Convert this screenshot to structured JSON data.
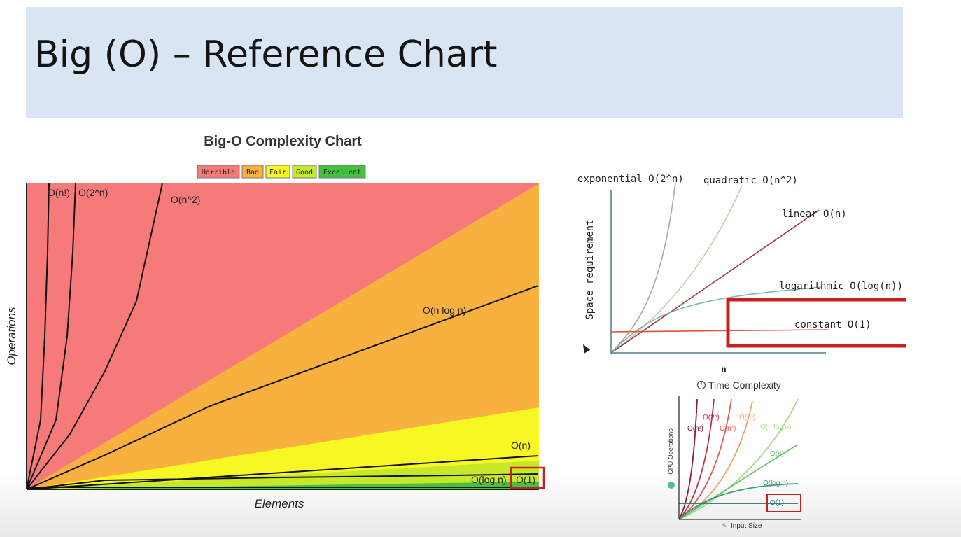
{
  "slide": {
    "title": "Big (O) – Reference Chart"
  },
  "chart_data": [
    {
      "type": "area",
      "title": "Big-O Complexity Chart",
      "xlabel": "Elements",
      "ylabel": "Operations",
      "legend_position": "top-center",
      "legend": [
        {
          "label": "Horrible",
          "color": "#f77a7a"
        },
        {
          "label": "Bad",
          "color": "#f8b03e"
        },
        {
          "label": "Fair",
          "color": "#f7f724"
        },
        {
          "label": "Good",
          "color": "#c6e829"
        },
        {
          "label": "Excellent",
          "color": "#44c13f"
        }
      ],
      "regions": [
        {
          "name": "Horrible",
          "color": "#f77a7a"
        },
        {
          "name": "Bad",
          "color": "#f8b03e"
        },
        {
          "name": "Fair",
          "color": "#f7f724"
        },
        {
          "name": "Good",
          "color": "#c6e829"
        },
        {
          "name": "Excellent",
          "color": "#44c13f"
        }
      ],
      "series": [
        {
          "label": "O(n!)"
        },
        {
          "label": "O(2^n)"
        },
        {
          "label": "O(n^2)"
        },
        {
          "label": "O(n log n)"
        },
        {
          "label": "O(n)"
        },
        {
          "label": "O(log n)"
        },
        {
          "label": "O(1)",
          "highlighted": true
        }
      ]
    },
    {
      "type": "line",
      "style": "hand-drawn",
      "xlabel": "n",
      "ylabel": "Space requirement",
      "series": [
        {
          "label": "exponential O(2^n)",
          "color": "#a9a9a9"
        },
        {
          "label": "quadratic O(n^2)",
          "color": "#c6d1a3"
        },
        {
          "label": "linear O(n)",
          "color": "#9c3a4a"
        },
        {
          "label": "logarithmic O(log(n))",
          "color": "#79b7b1"
        },
        {
          "label": "constant O(1)",
          "color": "#e0553d",
          "highlighted": true
        }
      ]
    },
    {
      "type": "line",
      "title": "Time Complexity",
      "title_icon": "stopwatch-icon",
      "xlabel": "Input Size",
      "xlabel_icon": "ruler-icon",
      "ylabel": "CPU Operations",
      "ylabel_icon": "cpu-icon",
      "series": [
        {
          "label": "O(n!)",
          "color": "#8e1a3e"
        },
        {
          "label": "O(2ⁿ)",
          "color": "#c0304a"
        },
        {
          "label": "O(n²)",
          "color": "#e05a55"
        },
        {
          "label": "O(n³)",
          "color": "#f2a06a"
        },
        {
          "label": "O(n log n)",
          "color": "#a5d98a"
        },
        {
          "label": "O(n)",
          "color": "#6fbf72"
        },
        {
          "label": "O(log n)",
          "color": "#3a9a73"
        },
        {
          "label": "O(1)",
          "color": "#1f7a6a",
          "highlighted": true
        }
      ]
    }
  ]
}
